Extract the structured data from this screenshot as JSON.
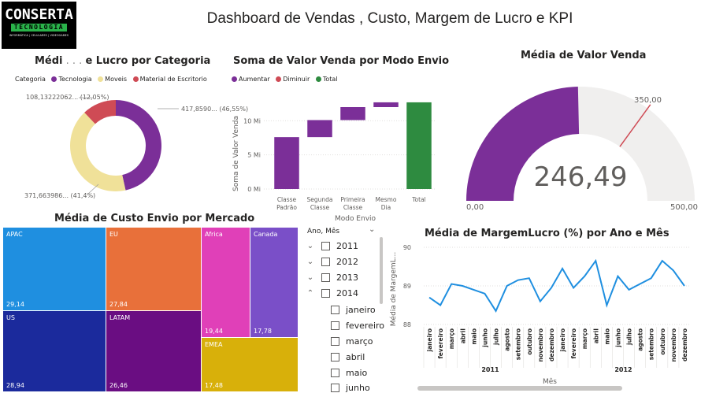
{
  "logo": {
    "line1": "CONSERTA",
    "line2": "TECNOLOGIA",
    "line3": "INFORMÁTICA | CELULARES | VIDEOGAMES"
  },
  "page_title": "Dashboard de Vendas , Custo, Margem de Lucro e KPI",
  "colors": {
    "purple": "#7b2f98",
    "beige": "#f0e199",
    "red": "#cf4b55",
    "green": "#2e8b40",
    "blue": "#1f8fe0",
    "orange": "#e8703a",
    "navy": "#1b2a9c",
    "violet": "#6a0d82",
    "pink": "#e040b8",
    "lavender": "#7a4fc8",
    "gold": "#d8b00a"
  },
  "slicer": {
    "header": "Ano, Mês",
    "years": [
      "2011",
      "2012",
      "2013",
      "2014"
    ],
    "months": [
      "janeiro",
      "fevereiro",
      "março",
      "abril",
      "maio",
      "junho"
    ]
  },
  "chart_data": [
    {
      "id": "donut",
      "type": "pie",
      "title_left": "Médi",
      "title_right": "e Lucro por Categoria",
      "legend_title": "Categoria",
      "categories": [
        "Tecnologia",
        "Moveis",
        "Material de Escritorio"
      ],
      "values": [
        46.55,
        41.4,
        12.05
      ],
      "data_labels": [
        "417,8590... (46,55%)",
        "371,663986... (41,4%)",
        "108,13222062... (12,05%)"
      ]
    },
    {
      "id": "waterfall",
      "type": "bar",
      "title": "Soma de Valor Venda por Modo Envio",
      "legend": [
        "Aumentar",
        "Diminuir",
        "Total"
      ],
      "xlabel": "Modo Envio",
      "ylabel": "Soma de Valor Venda",
      "yticks": [
        "0 Mi",
        "5 Mi",
        "10 Mi"
      ],
      "ylim": [
        0,
        15
      ],
      "categories": [
        [
          "Classe",
          "Padrão"
        ],
        [
          "Segunda",
          "Classe"
        ],
        [
          "Primeira",
          "Classe"
        ],
        [
          "Mesmo",
          "Dia"
        ],
        [
          "Total"
        ]
      ],
      "values": [
        7.6,
        2.5,
        1.9,
        0.7,
        12.7
      ]
    },
    {
      "id": "gauge",
      "type": "bar",
      "title": "Média de Valor Venda",
      "value": 246.49,
      "value_label": "246,49",
      "target": 350.0,
      "target_label": "350,00",
      "min_label": "0,00",
      "max_label": "500,00",
      "ylim": [
        0,
        500
      ]
    },
    {
      "id": "treemap",
      "type": "heatmap",
      "title": "Média de Custo Envio por Mercado",
      "items": [
        {
          "name": "APAC",
          "value": "29,14"
        },
        {
          "name": "US",
          "value": "28,94"
        },
        {
          "name": "EU",
          "value": "27,84"
        },
        {
          "name": "LATAM",
          "value": "26,46"
        },
        {
          "name": "Africa",
          "value": "19,44"
        },
        {
          "name": "Canada",
          "value": "17,78"
        },
        {
          "name": "EMEA",
          "value": "17,48"
        }
      ]
    },
    {
      "id": "line",
      "type": "line",
      "title": "Média de MargemLucro (%) por Ano e Mês",
      "xlabel": "Mês",
      "ylabel": "Média de MargemL...",
      "yticks": [
        "88",
        "89",
        "90"
      ],
      "ylim": [
        88,
        90
      ],
      "groups": [
        "2011",
        "2012"
      ],
      "x": [
        "janeiro",
        "fevereiro",
        "março",
        "abril",
        "maio",
        "junho",
        "julho",
        "agosto",
        "setembro",
        "outubro",
        "novembro",
        "dezembro",
        "janeiro",
        "fevereiro",
        "março",
        "abril",
        "maio",
        "junho",
        "julho",
        "agosto",
        "setembro",
        "outubro",
        "novembro",
        "dezembro"
      ],
      "values": [
        88.7,
        88.5,
        89.05,
        89.0,
        88.9,
        88.8,
        88.35,
        89.0,
        89.15,
        89.2,
        88.6,
        88.95,
        89.45,
        88.95,
        89.25,
        89.65,
        88.5,
        89.25,
        88.9,
        89.05,
        89.2,
        89.65,
        89.4,
        89.0
      ]
    }
  ]
}
